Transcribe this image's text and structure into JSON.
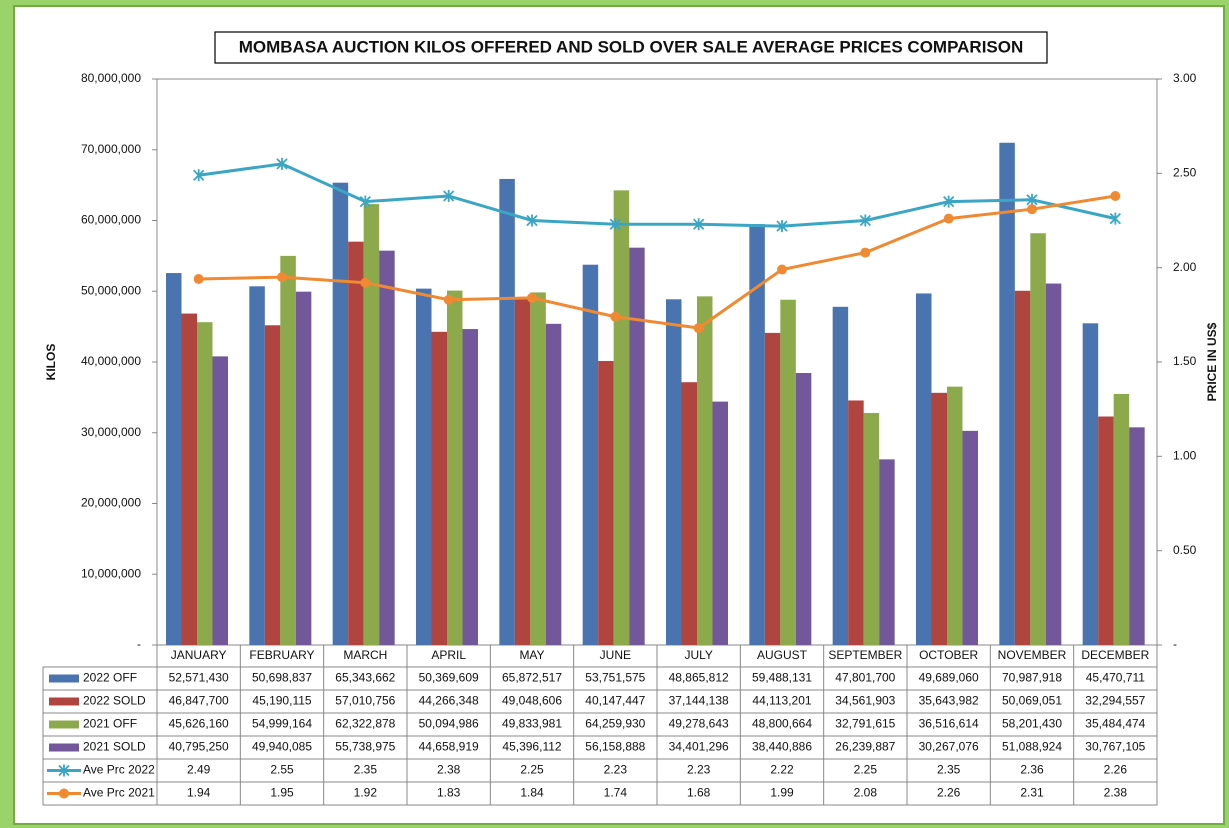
{
  "chart_data": {
    "type": "bar",
    "title": "MOMBASA AUCTION KILOS OFFERED AND SOLD OVER SALE AVERAGE PRICES COMPARISON",
    "ylabel": "KILOS",
    "y2label": "PRICE  IN US$",
    "categories": [
      "JANUARY",
      "FEBRUARY",
      "MARCH",
      "APRIL",
      "MAY",
      "JUNE",
      "JULY",
      "AUGUST",
      "SEPTEMBER",
      "OCTOBER",
      "NOVEMBER",
      "DECEMBER"
    ],
    "series": [
      {
        "name": "2022 OFF",
        "color": "#4a74b0",
        "values": [
          52571430,
          50698837,
          65343662,
          50369609,
          65872517,
          53751575,
          48865812,
          59488131,
          47801700,
          49689060,
          70987918,
          45470711
        ],
        "value_labels": [
          "52,571,430",
          "50,698,837",
          "65,343,662",
          "50,369,609",
          "65,872,517",
          "53,751,575",
          "48,865,812",
          "59,488,131",
          "47,801,700",
          "49,689,060",
          "70,987,918",
          "45,470,711"
        ]
      },
      {
        "name": "2022 SOLD",
        "color": "#b0443f",
        "values": [
          46847700,
          45190115,
          57010756,
          44266348,
          49048606,
          40147447,
          37144138,
          44113201,
          34561903,
          35643982,
          50069051,
          32294557
        ],
        "value_labels": [
          "46,847,700",
          "45,190,115",
          "57,010,756",
          "44,266,348",
          "49,048,606",
          "40,147,447",
          "37,144,138",
          "44,113,201",
          "34,561,903",
          "35,643,982",
          "50,069,051",
          "32,294,557"
        ]
      },
      {
        "name": "2021 OFF",
        "color": "#8caa4c",
        "values": [
          45626160,
          54999164,
          62322878,
          50094986,
          49833981,
          64259930,
          49278643,
          48800664,
          32791615,
          36516614,
          58201430,
          35484474
        ],
        "value_labels": [
          "45,626,160",
          "54,999,164",
          "62,322,878",
          "50,094,986",
          "49,833,981",
          "64,259,930",
          "49,278,643",
          "48,800,664",
          "32,791,615",
          "36,516,614",
          "58,201,430",
          "35,484,474"
        ]
      },
      {
        "name": "2021 SOLD",
        "color": "#72589a",
        "values": [
          40795250,
          49940085,
          55738975,
          44658919,
          45396112,
          56158888,
          34401296,
          38440886,
          26239887,
          30267076,
          51088924,
          30767105
        ],
        "value_labels": [
          "40,795,250",
          "49,940,085",
          "55,738,975",
          "44,658,919",
          "45,396,112",
          "56,158,888",
          "34,401,296",
          "38,440,886",
          "26,239,887",
          "30,267,076",
          "51,088,924",
          "30,767,105"
        ]
      },
      {
        "name": "Ave Prc 2022",
        "type": "line",
        "axis": "y2",
        "marker": "star",
        "color": "#3aa6c4",
        "values": [
          2.49,
          2.55,
          2.35,
          2.38,
          2.25,
          2.23,
          2.23,
          2.22,
          2.25,
          2.35,
          2.36,
          2.26
        ]
      },
      {
        "name": "Ave Prc 2021",
        "type": "line",
        "axis": "y2",
        "marker": "circle",
        "color": "#ef8a32",
        "values": [
          1.94,
          1.95,
          1.92,
          1.83,
          1.84,
          1.74,
          1.68,
          1.99,
          2.08,
          2.26,
          2.31,
          2.38
        ]
      }
    ],
    "ylim": [
      0,
      80000000
    ],
    "yticks": [
      {
        "value": 0,
        "label": "-"
      },
      {
        "value": 10000000,
        "label": "10,000,000"
      },
      {
        "value": 20000000,
        "label": "20,000,000"
      },
      {
        "value": 30000000,
        "label": "30,000,000"
      },
      {
        "value": 40000000,
        "label": "40,000,000"
      },
      {
        "value": 50000000,
        "label": "50,000,000"
      },
      {
        "value": 60000000,
        "label": "60,000,000"
      },
      {
        "value": 70000000,
        "label": "70,000,000"
      },
      {
        "value": 80000000,
        "label": "80,000,000"
      }
    ],
    "y2lim": [
      0,
      3
    ],
    "y2ticks": [
      {
        "value": 0,
        "label": "-"
      },
      {
        "value": 0.5,
        "label": "0.50"
      },
      {
        "value": 1,
        "label": "1.00"
      },
      {
        "value": 1.5,
        "label": "1.50"
      },
      {
        "value": 2,
        "label": "2.00"
      },
      {
        "value": 2.5,
        "label": "2.50"
      },
      {
        "value": 3,
        "label": "3.00"
      }
    ],
    "grid": false
  }
}
